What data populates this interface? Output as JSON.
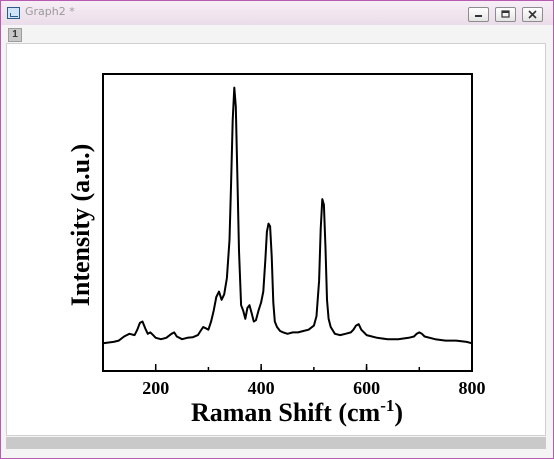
{
  "window": {
    "title": "Graph2 *",
    "layer_number": "1"
  },
  "chart_data": {
    "type": "line",
    "xlabel": "Raman Shift (cm",
    "xlabel_superscript": "-1",
    "xlabel_suffix": ")",
    "ylabel": "Intensity (a.u.)",
    "xlim": [
      100,
      800
    ],
    "ylim": [
      0,
      1
    ],
    "x_ticks": [
      200,
      400,
      600,
      800
    ],
    "grid": false,
    "series": [
      {
        "color": "#000000",
        "x": [
          100,
          120,
          130,
          140,
          150,
          160,
          165,
          170,
          175,
          180,
          185,
          190,
          195,
          200,
          210,
          220,
          230,
          235,
          240,
          250,
          260,
          270,
          280,
          285,
          290,
          295,
          300,
          305,
          310,
          315,
          320,
          325,
          330,
          335,
          340,
          343,
          346,
          349,
          352,
          355,
          358,
          362,
          366,
          370,
          374,
          378,
          382,
          386,
          390,
          395,
          400,
          404,
          408,
          411,
          414,
          417,
          420,
          423,
          426,
          430,
          436,
          442,
          450,
          460,
          470,
          480,
          490,
          500,
          505,
          510,
          513,
          516,
          519,
          522,
          525,
          528,
          532,
          540,
          550,
          560,
          570,
          575,
          580,
          585,
          590,
          600,
          620,
          640,
          660,
          680,
          690,
          695,
          700,
          705,
          710,
          730,
          750,
          770,
          790,
          800
        ],
        "y": [
          0.01,
          0.015,
          0.02,
          0.035,
          0.045,
          0.04,
          0.06,
          0.085,
          0.09,
          0.065,
          0.045,
          0.05,
          0.04,
          0.03,
          0.025,
          0.03,
          0.045,
          0.05,
          0.035,
          0.025,
          0.03,
          0.032,
          0.04,
          0.055,
          0.07,
          0.065,
          0.06,
          0.09,
          0.13,
          0.18,
          0.2,
          0.17,
          0.19,
          0.25,
          0.39,
          0.6,
          0.83,
          0.95,
          0.88,
          0.62,
          0.35,
          0.15,
          0.13,
          0.1,
          0.14,
          0.15,
          0.12,
          0.09,
          0.095,
          0.13,
          0.16,
          0.2,
          0.32,
          0.42,
          0.45,
          0.44,
          0.33,
          0.16,
          0.09,
          0.07,
          0.055,
          0.05,
          0.045,
          0.05,
          0.05,
          0.055,
          0.06,
          0.075,
          0.11,
          0.24,
          0.43,
          0.54,
          0.52,
          0.36,
          0.17,
          0.1,
          0.07,
          0.045,
          0.04,
          0.045,
          0.05,
          0.06,
          0.075,
          0.08,
          0.06,
          0.04,
          0.03,
          0.025,
          0.025,
          0.03,
          0.035,
          0.045,
          0.05,
          0.045,
          0.035,
          0.025,
          0.02,
          0.02,
          0.015,
          0.01
        ]
      }
    ]
  }
}
